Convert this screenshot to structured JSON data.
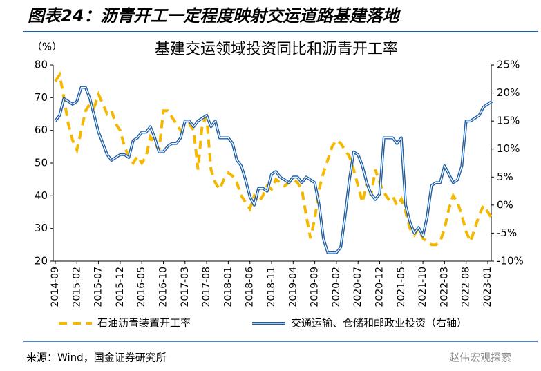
{
  "header": {
    "title": "图表24：沥青开工一定程度映射交运道路基建落地"
  },
  "chart_data": {
    "type": "line",
    "title": "基建交运领域投资同比和沥青开工率",
    "y_label": "（%）",
    "categories": [
      "2014-09",
      null,
      null,
      null,
      null,
      "2015-02",
      null,
      null,
      null,
      null,
      "2015-07",
      null,
      null,
      null,
      null,
      "2015-12",
      null,
      null,
      null,
      null,
      "2016-05",
      null,
      null,
      null,
      null,
      "2016-10",
      null,
      null,
      null,
      null,
      "2017-03",
      null,
      null,
      null,
      null,
      "2017-08",
      null,
      null,
      null,
      null,
      "2018-01",
      null,
      null,
      null,
      null,
      "2018-06",
      null,
      null,
      null,
      null,
      "2018-11",
      null,
      null,
      null,
      null,
      "2019-04",
      null,
      null,
      null,
      null,
      "2019-09",
      null,
      null,
      null,
      null,
      "2020-02",
      null,
      null,
      null,
      null,
      "2020-07",
      null,
      null,
      null,
      null,
      "2020-12",
      null,
      null,
      null,
      null,
      "2021-05",
      null,
      null,
      null,
      null,
      "2021-10",
      null,
      null,
      null,
      null,
      "2022-03",
      null,
      null,
      null,
      null,
      "2022-08",
      null,
      null,
      null,
      null,
      "2023-01",
      null
    ],
    "ylim": [
      20,
      80
    ],
    "yticks": [
      20,
      30,
      40,
      50,
      60,
      70,
      80
    ],
    "y2lim": [
      -10,
      25
    ],
    "y2ticks": [
      {
        "value": -10,
        "label": "-10%"
      },
      {
        "value": -5,
        "label": "-5%"
      },
      {
        "value": 0,
        "label": "0%"
      },
      {
        "value": 5,
        "label": "5%"
      },
      {
        "value": 10,
        "label": "10%"
      },
      {
        "value": 15,
        "label": "15%"
      },
      {
        "value": 20,
        "label": "20%"
      },
      {
        "value": 25,
        "label": "25%"
      }
    ],
    "grid": false,
    "series": [
      {
        "name": "石油沥青装置开工率",
        "color": "#F5B800",
        "dashed": true,
        "values": [
          75,
          77,
          70,
          62,
          57,
          54,
          60,
          66,
          68,
          67,
          71,
          68,
          65,
          66,
          62,
          60,
          55,
          52,
          50,
          52,
          50,
          52,
          58,
          56,
          54,
          66,
          66,
          64,
          62,
          60,
          61,
          62,
          60,
          48,
          62,
          64,
          48,
          44,
          42,
          45,
          47,
          46,
          44,
          40,
          38,
          36,
          40,
          38,
          40,
          43,
          42,
          45,
          44,
          43,
          44,
          45,
          44,
          42,
          34,
          27,
          33,
          42,
          47,
          51,
          55,
          57,
          56,
          54,
          52,
          48,
          43,
          38,
          44,
          40,
          48,
          44,
          41,
          39,
          40,
          37,
          39,
          35,
          30,
          28,
          30,
          27,
          26,
          25,
          25,
          26,
          30,
          36,
          40,
          38,
          34,
          29,
          26,
          30,
          34,
          37,
          35,
          33
        ]
      },
      {
        "name": "交通运输、仓储和邮政业投资（右轴）",
        "color": "#1F5FA8",
        "axis": "y2",
        "values": [
          15,
          16,
          19,
          18.5,
          18,
          18.5,
          21,
          21,
          19,
          16,
          13,
          11,
          9,
          8,
          8.5,
          9,
          9,
          8.5,
          11.5,
          12,
          13,
          13,
          14,
          12,
          9.5,
          9.5,
          10.5,
          11,
          11,
          12,
          15,
          15,
          14,
          15,
          15.5,
          16,
          14,
          15,
          12,
          12,
          12,
          11,
          8,
          7,
          4.5,
          1.5,
          0,
          3,
          3,
          2.5,
          5.5,
          6,
          5,
          4.5,
          4,
          5,
          5,
          4,
          5,
          4.5,
          4,
          0,
          -6,
          -8.5,
          -8.5,
          -8.5,
          -7.5,
          -2,
          4.5,
          9.5,
          9,
          7,
          4,
          2,
          1,
          2,
          12,
          12,
          12,
          11,
          12,
          0,
          -3,
          -5,
          -4,
          -5.5,
          -2,
          3.5,
          4,
          4,
          7,
          5.5,
          4,
          4.5,
          7,
          15,
          15,
          15.5,
          16,
          17.5,
          18,
          18.5
        ]
      }
    ]
  },
  "footer": {
    "source": "来源：Wind，国金证券研究所",
    "watermark": "赵伟宏观探索"
  }
}
